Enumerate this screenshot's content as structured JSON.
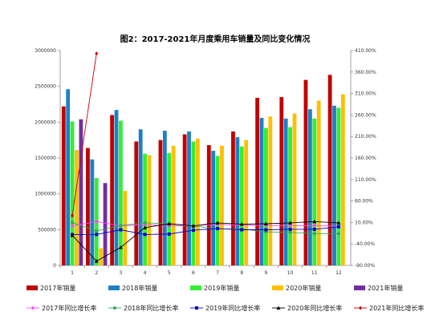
{
  "chart_data": {
    "type": "bar",
    "title": "图2：2017-2021年月度乘用车销量及同比变化情况",
    "categories": [
      "1",
      "2",
      "3",
      "4",
      "5",
      "6",
      "7",
      "8",
      "9",
      "10",
      "11",
      "12"
    ],
    "y_left": {
      "ticks": [
        "0",
        "500000",
        "1000000",
        "1500000",
        "2000000",
        "2500000",
        "3000000"
      ],
      "ylim": [
        0,
        3000000
      ]
    },
    "y_right": {
      "ticks": [
        "-90.00%",
        "-40.00%",
        "10.00%",
        "60.00%",
        "110.00%",
        "160.00%",
        "210.00%",
        "260.00%",
        "310.00%",
        "360.00%",
        "410.00%"
      ],
      "ylim": [
        -90,
        410
      ]
    },
    "grid": false,
    "legend_position": "bottom",
    "bar_series": [
      {
        "name": "2017年销量",
        "color": "#c00000",
        "values": [
          2220000,
          1640000,
          2100000,
          1730000,
          1750000,
          1830000,
          1680000,
          1870000,
          2340000,
          2350000,
          2590000,
          2660000
        ]
      },
      {
        "name": "2018年销量",
        "color": "#1f7fc5",
        "values": [
          2460000,
          1480000,
          2170000,
          1900000,
          1880000,
          1870000,
          1600000,
          1790000,
          2060000,
          2050000,
          2180000,
          2230000
        ]
      },
      {
        "name": "2019年销量",
        "color": "#33ee33",
        "values": [
          2010000,
          1220000,
          2020000,
          1560000,
          1570000,
          1730000,
          1530000,
          1660000,
          1920000,
          1930000,
          2050000,
          2200000
        ]
      },
      {
        "name": "2020年销量",
        "color": "#ffc000",
        "values": [
          1610000,
          240000,
          1040000,
          1540000,
          1670000,
          1770000,
          1670000,
          1750000,
          2080000,
          2120000,
          2300000,
          2390000
        ]
      },
      {
        "name": "2021年销量",
        "color": "#7030a0",
        "values": [
          2040000,
          1150000,
          null,
          null,
          null,
          null,
          null,
          null,
          null,
          null,
          null,
          null
        ]
      }
    ],
    "line_series": [
      {
        "name": "2017年同比增长率",
        "color": "#ff44ff",
        "marker": "diamond",
        "values": [
          2,
          12,
          2,
          5,
          2,
          3,
          5,
          4,
          3,
          2,
          3,
          1
        ]
      },
      {
        "name": "2018年同比增长率",
        "color": "#33aa55",
        "marker": "circle",
        "values": [
          10,
          -10,
          3,
          9,
          7,
          2,
          -5,
          -5,
          -12,
          -13,
          -16,
          -16
        ]
      },
      {
        "name": "2019年同比增长率",
        "color": "#0000cc",
        "marker": "square",
        "values": [
          -18,
          -18,
          -7,
          -18,
          -17,
          -8,
          -4,
          -7,
          -7,
          -6,
          -6,
          0
        ]
      },
      {
        "name": "2020年同比增长率",
        "color": "#000000",
        "marker": "triangle",
        "values": [
          -20,
          -80,
          -48,
          -2,
          7,
          2,
          9,
          6,
          7,
          9,
          12,
          9
        ]
      },
      {
        "name": "2021年同比增长率",
        "color": "#cc0000",
        "marker": "diamond",
        "values": [
          26,
          403,
          null,
          null,
          null,
          null,
          null,
          null,
          null,
          null,
          null,
          null
        ]
      }
    ]
  }
}
